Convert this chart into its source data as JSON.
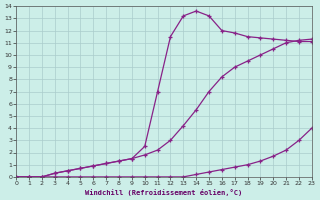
{
  "xlabel": "Windchill (Refroidissement éolien,°C)",
  "bg_color": "#cceee8",
  "grid_color": "#aacccc",
  "line_color": "#882288",
  "xlim": [
    0,
    23
  ],
  "ylim": [
    0,
    14
  ],
  "xticks": [
    0,
    1,
    2,
    3,
    4,
    5,
    6,
    7,
    8,
    9,
    10,
    11,
    12,
    13,
    14,
    15,
    16,
    17,
    18,
    19,
    20,
    21,
    22,
    23
  ],
  "yticks": [
    0,
    1,
    2,
    3,
    4,
    5,
    6,
    7,
    8,
    9,
    10,
    11,
    12,
    13,
    14
  ],
  "curve1_x": [
    0,
    1,
    2,
    3,
    4,
    5,
    6,
    7,
    8,
    9,
    10,
    11,
    12,
    13,
    14,
    15,
    16,
    17,
    18,
    19,
    20,
    21,
    22,
    23
  ],
  "curve1_y": [
    0,
    0,
    0,
    0,
    0,
    0,
    0,
    0,
    0,
    0,
    0,
    0,
    0,
    0,
    0.2,
    0.4,
    0.6,
    0.8,
    1.0,
    1.3,
    1.7,
    2.2,
    3.0,
    4.0
  ],
  "curve2_x": [
    0,
    1,
    2,
    3,
    4,
    5,
    6,
    7,
    8,
    9,
    10,
    11,
    12,
    13,
    14,
    15,
    16,
    17,
    18,
    19,
    20,
    21,
    22,
    23
  ],
  "curve2_y": [
    0,
    0,
    0,
    0.3,
    0.5,
    0.7,
    0.9,
    1.1,
    1.3,
    1.5,
    1.8,
    2.2,
    3.0,
    4.2,
    5.5,
    7.0,
    8.2,
    9.0,
    9.5,
    10.0,
    10.5,
    11.0,
    11.2,
    11.3
  ],
  "curve3_x": [
    0,
    1,
    2,
    3,
    4,
    5,
    6,
    7,
    8,
    9,
    10,
    11,
    12,
    13,
    14,
    15,
    16,
    17,
    18,
    19,
    20,
    21,
    22,
    23
  ],
  "curve3_y": [
    0,
    0,
    0,
    0.3,
    0.5,
    0.7,
    0.9,
    1.1,
    1.3,
    1.5,
    2.5,
    7.0,
    11.5,
    13.2,
    13.6,
    13.2,
    12.0,
    11.8,
    11.5,
    11.4,
    11.3,
    11.2,
    11.1,
    11.1
  ]
}
